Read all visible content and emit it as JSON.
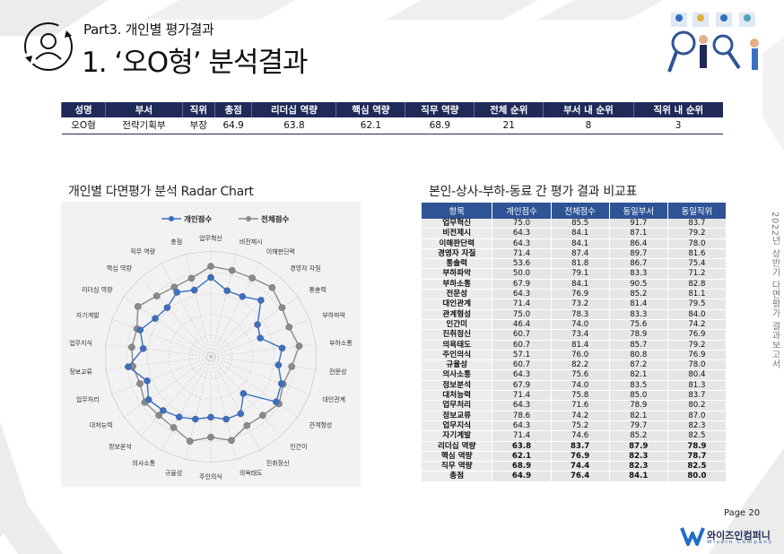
{
  "header": {
    "part_label": "Part3. 개인별 평가결과",
    "title": "1. ‘오O형’ 분석결과"
  },
  "summary_table": {
    "headers": [
      "성명",
      "부서",
      "직위",
      "총점",
      "리더십 역량",
      "핵심 역량",
      "직무 역량",
      "전체 순위",
      "부서 내 순위",
      "직위 내 순위"
    ],
    "row": [
      "오O형",
      "전략기획부",
      "부장",
      "64.9",
      "63.8",
      "62.1",
      "68.9",
      "21",
      "8",
      "3"
    ]
  },
  "radar_section": {
    "title": "개인별 다면평가 분석 Radar Chart"
  },
  "compare_section": {
    "title": "본인-상사-부하-동료 간 평가 결과 비교표"
  },
  "compare_table": {
    "headers": [
      "항목",
      "개인점수",
      "전체점수",
      "동일부서",
      "동일직위"
    ],
    "rows": [
      [
        "업무혁신",
        "75.0",
        "85.5",
        "91.7",
        "83.7"
      ],
      [
        "비전제시",
        "64.3",
        "84.1",
        "87.1",
        "79.2"
      ],
      [
        "이해판단력",
        "64.3",
        "84.1",
        "86.4",
        "78.0"
      ],
      [
        "경영자 자질",
        "71.4",
        "87.4",
        "89.7",
        "81.6"
      ],
      [
        "통솔력",
        "53.6",
        "81.8",
        "86.7",
        "75.4"
      ],
      [
        "부하파악",
        "50.0",
        "79.1",
        "83.3",
        "71.2"
      ],
      [
        "부하소통",
        "67.9",
        "84.1",
        "90.5",
        "82.8"
      ],
      [
        "전문성",
        "64.3",
        "76.9",
        "85.2",
        "81.1"
      ],
      [
        "대인관계",
        "71.4",
        "73.2",
        "81.4",
        "79.5"
      ],
      [
        "관계형성",
        "75.0",
        "78.3",
        "83.3",
        "84.0"
      ],
      [
        "인간미",
        "46.4",
        "74.0",
        "75.6",
        "74.2"
      ],
      [
        "진취정신",
        "60.7",
        "73.4",
        "78.9",
        "76.9"
      ],
      [
        "의욕태도",
        "60.7",
        "81.4",
        "85.7",
        "79.2"
      ],
      [
        "주인의식",
        "57.1",
        "76.0",
        "80.8",
        "76.9"
      ],
      [
        "규율성",
        "60.7",
        "82.2",
        "87.2",
        "78.0"
      ],
      [
        "의사소통",
        "64.3",
        "75.6",
        "82.1",
        "80.4"
      ],
      [
        "정보분석",
        "67.9",
        "74.0",
        "83.5",
        "81.3"
      ],
      [
        "대처능력",
        "71.4",
        "75.8",
        "85.0",
        "83.7"
      ],
      [
        "업무처리",
        "64.3",
        "71.6",
        "78.9",
        "80.2"
      ],
      [
        "정보교류",
        "78.6",
        "74.2",
        "82.1",
        "87.0"
      ],
      [
        "업무지식",
        "64.3",
        "75.2",
        "79.7",
        "82.3"
      ],
      [
        "자기계발",
        "71.4",
        "74.6",
        "85.2",
        "82.5"
      ],
      [
        "리더십 역량",
        "63.8",
        "83.7",
        "87.9",
        "78.9"
      ],
      [
        "핵심 역량",
        "62.1",
        "76.9",
        "82.3",
        "78.7"
      ],
      [
        "직무 역량",
        "68.9",
        "74.4",
        "82.3",
        "82.5"
      ],
      [
        "총점",
        "64.9",
        "76.4",
        "84.1",
        "80.0"
      ]
    ]
  },
  "chart_data": {
    "type": "radar",
    "legend_position": "top",
    "categories": [
      "업무혁신",
      "비전제시",
      "이해판단력",
      "경영자 자질",
      "통솔력",
      "부하파악",
      "부하소통",
      "전문성",
      "대인관계",
      "관계형성",
      "인간미",
      "진취정신",
      "의욕태도",
      "주인의식",
      "규율성",
      "의사소통",
      "정보분석",
      "대처능력",
      "업무처리",
      "정보교류",
      "업무지식",
      "자기계발",
      "리더십 역량",
      "핵심 역량",
      "직무 역량",
      "총점"
    ],
    "series": [
      {
        "name": "개인점수",
        "color": "#3a6fc4",
        "values": [
          75.0,
          64.3,
          64.3,
          71.4,
          53.6,
          50.0,
          67.9,
          64.3,
          71.4,
          75.0,
          46.4,
          60.7,
          60.7,
          57.1,
          60.7,
          64.3,
          67.9,
          71.4,
          64.3,
          78.6,
          64.3,
          71.4,
          63.8,
          62.1,
          68.9,
          64.9
        ]
      },
      {
        "name": "전체점수",
        "color": "#8a8a8a",
        "values": [
          85.5,
          84.1,
          84.1,
          87.4,
          81.8,
          79.1,
          84.1,
          76.9,
          73.2,
          78.3,
          74.0,
          73.4,
          81.4,
          76.0,
          82.2,
          75.6,
          74.0,
          75.8,
          71.6,
          74.2,
          75.2,
          74.6,
          83.7,
          76.9,
          74.4,
          76.4
        ]
      }
    ],
    "rlim": [
      0,
      100
    ],
    "grid": true
  },
  "side_text": "2022년 상반기 다면평가 결과보고서",
  "footer": {
    "page_number": "Page  20",
    "logo_name": "와이즈인컴퍼니",
    "logo_sub": "Wisein Company"
  },
  "colors": {
    "header_navy": "#1f2a58",
    "table_blue": "#2f5496",
    "series_personal": "#3a6fc4",
    "series_total": "#8a8a8a"
  }
}
